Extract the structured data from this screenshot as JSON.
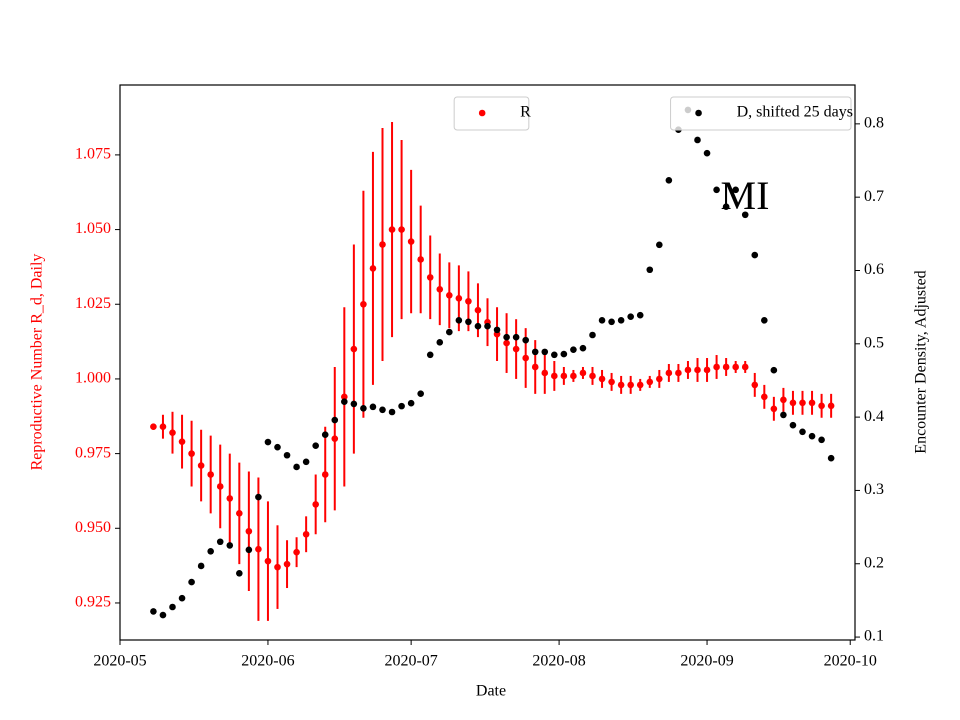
{
  "chart_data": {
    "type": "errorbar-dual",
    "xlabel": "Date",
    "ylabel": "Reproductive Number R_d, Daily",
    "y2label": "Encounter Density, Adjusted",
    "annotation": "MI",
    "x": [
      "2020-05-08",
      "2020-05-10",
      "2020-05-12",
      "2020-05-14",
      "2020-05-16",
      "2020-05-18",
      "2020-05-20",
      "2020-05-22",
      "2020-05-24",
      "2020-05-26",
      "2020-05-28",
      "2020-05-30",
      "2020-06-01",
      "2020-06-03",
      "2020-06-05",
      "2020-06-07",
      "2020-06-09",
      "2020-06-11",
      "2020-06-13",
      "2020-06-15",
      "2020-06-17",
      "2020-06-19",
      "2020-06-21",
      "2020-06-23",
      "2020-06-25",
      "2020-06-27",
      "2020-06-29",
      "2020-07-01",
      "2020-07-03",
      "2020-07-05",
      "2020-07-07",
      "2020-07-09",
      "2020-07-11",
      "2020-07-13",
      "2020-07-15",
      "2020-07-17",
      "2020-07-19",
      "2020-07-21",
      "2020-07-23",
      "2020-07-25",
      "2020-07-27",
      "2020-07-29",
      "2020-07-31",
      "2020-08-02",
      "2020-08-04",
      "2020-08-06",
      "2020-08-08",
      "2020-08-10",
      "2020-08-12",
      "2020-08-14",
      "2020-08-16",
      "2020-08-18",
      "2020-08-20",
      "2020-08-22",
      "2020-08-24",
      "2020-08-26",
      "2020-08-28",
      "2020-08-30",
      "2020-09-01",
      "2020-09-03",
      "2020-09-05",
      "2020-09-07",
      "2020-09-09",
      "2020-09-11",
      "2020-09-13",
      "2020-09-15",
      "2020-09-17",
      "2020-09-19",
      "2020-09-21",
      "2020-09-23",
      "2020-09-25",
      "2020-09-27"
    ],
    "xlim": [
      "2020-05-01",
      "2020-10-02"
    ],
    "xticks": [
      {
        "value": "2020-05-01",
        "label": "2020-05"
      },
      {
        "value": "2020-06-01",
        "label": "2020-06"
      },
      {
        "value": "2020-07-01",
        "label": "2020-07"
      },
      {
        "value": "2020-08-01",
        "label": "2020-08"
      },
      {
        "value": "2020-09-01",
        "label": "2020-09"
      },
      {
        "value": "2020-10-01",
        "label": "2020-10"
      }
    ],
    "ylim": [
      0.9126,
      1.0984
    ],
    "yticks": [
      0.925,
      {
        "value": 0.95,
        "label": "0.950"
      },
      0.975,
      {
        "value": 1.0,
        "label": "1.000"
      },
      1.025,
      {
        "value": 1.05,
        "label": "1.050"
      },
      1.075
    ],
    "y2lim": [
      0.096,
      0.853
    ],
    "y2ticks": [
      0.1,
      0.2,
      0.3,
      0.4,
      0.5,
      0.6,
      0.7,
      0.8
    ],
    "ylabel_color": "red",
    "series": [
      {
        "name": "R",
        "color": "red",
        "legend": "upper center",
        "values": [
          0.984,
          0.984,
          0.982,
          0.979,
          0.975,
          0.971,
          0.968,
          0.964,
          0.96,
          0.955,
          0.949,
          0.943,
          0.939,
          0.937,
          0.938,
          0.942,
          0.948,
          0.958,
          0.968,
          0.98,
          0.994,
          1.01,
          1.025,
          1.037,
          1.045,
          1.05,
          1.05,
          1.046,
          1.04,
          1.034,
          1.03,
          1.028,
          1.027,
          1.026,
          1.023,
          1.019,
          1.015,
          1.012,
          1.01,
          1.007,
          1.004,
          1.002,
          1.001,
          1.001,
          1.001,
          1.002,
          1.001,
          1.0,
          0.999,
          0.998,
          0.998,
          0.998,
          0.999,
          1.0,
          1.002,
          1.002,
          1.003,
          1.003,
          1.003,
          1.004,
          1.004,
          1.004,
          1.004,
          0.998,
          0.994,
          0.99,
          0.993,
          0.992,
          0.992,
          0.992,
          0.991,
          0.991
        ],
        "errors": [
          0.001,
          0.004,
          0.007,
          0.009,
          0.011,
          0.012,
          0.013,
          0.014,
          0.015,
          0.017,
          0.02,
          0.024,
          0.02,
          0.014,
          0.008,
          0.005,
          0.006,
          0.01,
          0.016,
          0.024,
          0.03,
          0.035,
          0.038,
          0.039,
          0.039,
          0.036,
          0.03,
          0.024,
          0.018,
          0.014,
          0.012,
          0.011,
          0.011,
          0.01,
          0.009,
          0.008,
          0.009,
          0.01,
          0.01,
          0.01,
          0.009,
          0.007,
          0.005,
          0.003,
          0.002,
          0.002,
          0.003,
          0.003,
          0.003,
          0.003,
          0.003,
          0.002,
          0.002,
          0.003,
          0.003,
          0.003,
          0.003,
          0.004,
          0.004,
          0.004,
          0.003,
          0.002,
          0.002,
          0.004,
          0.004,
          0.004,
          0.004,
          0.004,
          0.004,
          0.004,
          0.004,
          0.004
        ]
      },
      {
        "name": "D, shifted 25 days",
        "color": "black",
        "axis": "y2",
        "legend": "upper right",
        "values": [
          0.135,
          0.13,
          0.141,
          0.153,
          0.175,
          0.197,
          0.217,
          0.23,
          0.225,
          0.187,
          0.219,
          0.291,
          0.366,
          0.359,
          0.348,
          0.332,
          0.339,
          0.361,
          0.376,
          0.396,
          0.421,
          0.418,
          0.412,
          0.414,
          0.41,
          0.407,
          0.415,
          0.419,
          0.432,
          0.485,
          0.502,
          0.516,
          0.532,
          0.53,
          0.524,
          0.524,
          0.519,
          0.509,
          0.509,
          0.505,
          0.489,
          0.489,
          0.485,
          0.486,
          0.492,
          0.494,
          0.512,
          0.532,
          0.53,
          0.532,
          0.537,
          0.539,
          0.601,
          0.635,
          0.723,
          0.792,
          0.819,
          0.778,
          0.76,
          0.71,
          0.687,
          0.71,
          0.676,
          0.621,
          0.532,
          0.464,
          0.403,
          0.389,
          0.38,
          0.374,
          0.369,
          0.344
        ]
      }
    ]
  }
}
